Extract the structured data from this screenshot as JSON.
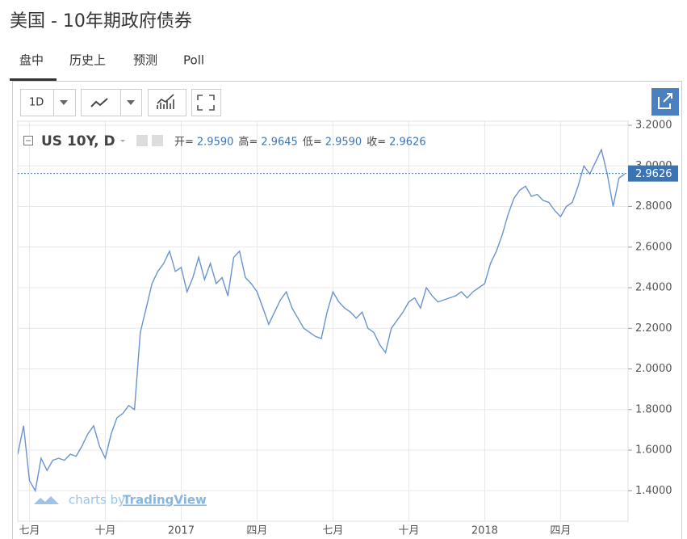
{
  "header": {
    "title": "美国 - 10年期政府债券"
  },
  "tabs": [
    "盘中",
    "历史上",
    "预测",
    "Poll"
  ],
  "toolbar": {
    "interval": "1D"
  },
  "watermark": {
    "prefix": "charts by",
    "brand": "TradingView"
  },
  "chart_data": {
    "type": "line",
    "legend": {
      "symbol": "US 10Y, D",
      "ohlc": [
        {
          "label": "开=",
          "value": "2.9590"
        },
        {
          "label": "高=",
          "value": "2.9645"
        },
        {
          "label": "低=",
          "value": "2.9590"
        },
        {
          "label": "收=",
          "value": "2.9626"
        }
      ]
    },
    "last_price": {
      "value": 2.9626,
      "label": "2.9626"
    },
    "categories": [
      null,
      null,
      "七月",
      null,
      null,
      null,
      null,
      null,
      null,
      null,
      null,
      null,
      null,
      null,
      null,
      "十月",
      null,
      null,
      null,
      null,
      null,
      null,
      null,
      null,
      null,
      null,
      null,
      null,
      "2017",
      null,
      null,
      null,
      null,
      null,
      null,
      null,
      null,
      null,
      null,
      null,
      null,
      "四月",
      null,
      null,
      null,
      null,
      null,
      null,
      null,
      null,
      null,
      null,
      null,
      null,
      "七月",
      null,
      null,
      null,
      null,
      null,
      null,
      null,
      null,
      null,
      null,
      null,
      null,
      "十月",
      null,
      null,
      null,
      null,
      null,
      null,
      null,
      null,
      null,
      null,
      null,
      null,
      "2018",
      null,
      null,
      null,
      null,
      null,
      null,
      null,
      null,
      null,
      null,
      null,
      null,
      "四月",
      null,
      null,
      null,
      null,
      null,
      null,
      null,
      null,
      null,
      null,
      null
    ],
    "series": [
      {
        "name": "US 10Y, D",
        "color": "#6a93cf",
        "values": [
          1.58,
          1.72,
          1.45,
          1.4,
          1.56,
          1.5,
          1.55,
          1.56,
          1.55,
          1.58,
          1.57,
          1.62,
          1.68,
          1.72,
          1.62,
          1.56,
          1.68,
          1.76,
          1.78,
          1.82,
          1.8,
          2.18,
          2.3,
          2.42,
          2.48,
          2.52,
          2.58,
          2.48,
          2.5,
          2.38,
          2.45,
          2.55,
          2.44,
          2.52,
          2.42,
          2.45,
          2.36,
          2.55,
          2.58,
          2.45,
          2.42,
          2.38,
          2.3,
          2.22,
          2.28,
          2.34,
          2.38,
          2.3,
          2.25,
          2.2,
          2.18,
          2.16,
          2.15,
          2.28,
          2.38,
          2.33,
          2.3,
          2.28,
          2.25,
          2.28,
          2.2,
          2.18,
          2.12,
          2.08,
          2.2,
          2.24,
          2.28,
          2.33,
          2.35,
          2.3,
          2.4,
          2.36,
          2.33,
          2.34,
          2.35,
          2.36,
          2.38,
          2.35,
          2.38,
          2.4,
          2.42,
          2.52,
          2.58,
          2.66,
          2.76,
          2.84,
          2.88,
          2.9,
          2.85,
          2.86,
          2.83,
          2.82,
          2.78,
          2.75,
          2.8,
          2.82,
          2.9,
          3.0,
          2.96,
          3.02,
          3.08,
          2.96,
          2.8,
          2.94,
          2.96
        ]
      }
    ],
    "ylim": [
      1.25,
      3.22
    ],
    "yticks": [
      {
        "value": 1.4,
        "label": "1.4000"
      },
      {
        "value": 1.6,
        "label": "1.6000"
      },
      {
        "value": 1.8,
        "label": "1.8000"
      },
      {
        "value": 2.0,
        "label": "2.0000"
      },
      {
        "value": 2.2,
        "label": "2.2000"
      },
      {
        "value": 2.4,
        "label": "2.4000"
      },
      {
        "value": 2.6,
        "label": "2.6000"
      },
      {
        "value": 2.8,
        "label": "2.8000"
      },
      {
        "value": 3.0,
        "label": "3.0000"
      },
      {
        "value": 3.2,
        "label": "3.2000"
      }
    ],
    "grid": true
  }
}
